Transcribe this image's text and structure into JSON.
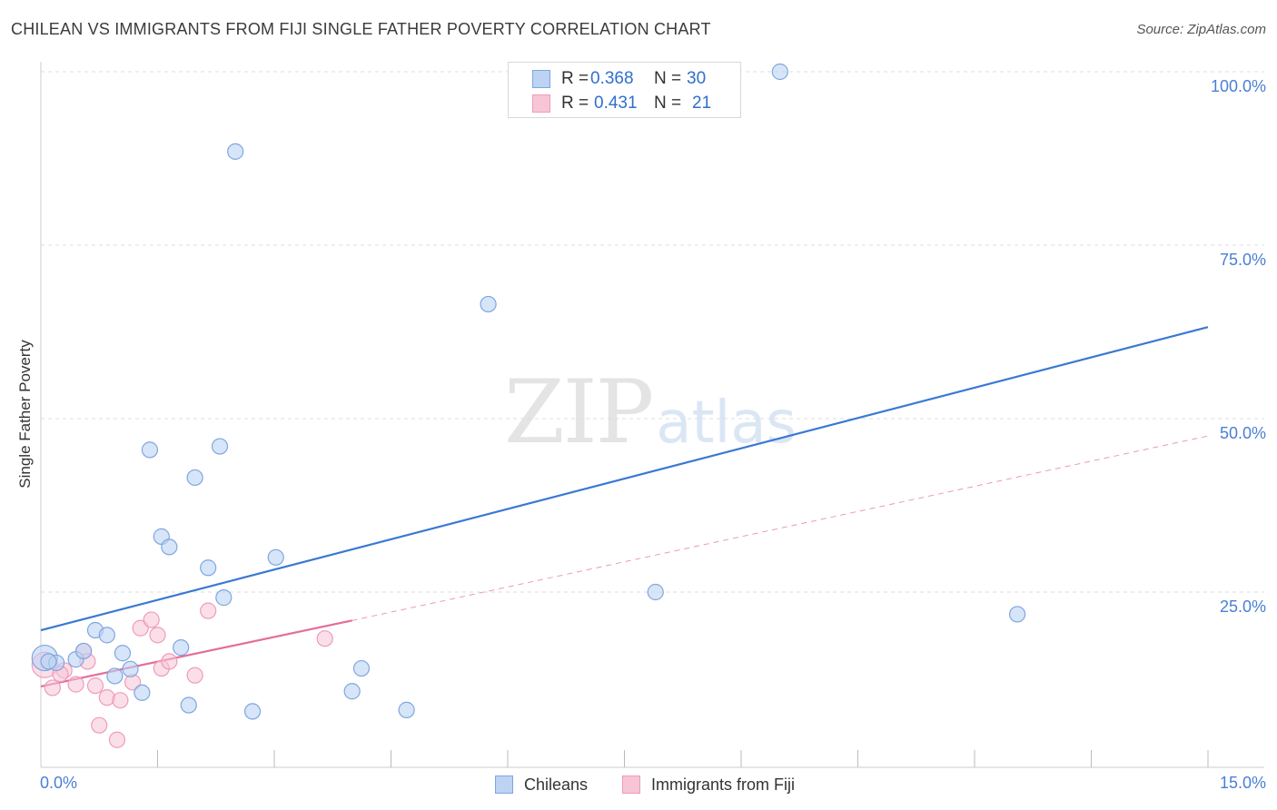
{
  "title": "CHILEAN VS IMMIGRANTS FROM FIJI SINGLE FATHER POVERTY CORRELATION CHART",
  "source": "Source: ZipAtlas.com",
  "watermark": {
    "zip": "ZIP",
    "atlas": "atlas"
  },
  "colors": {
    "blue": "#3a78d4",
    "blue_fill": "#bcd3f3",
    "blue_stroke": "#7fa6e0",
    "pink": "#e46d9b",
    "pink_fill": "#f7c5d6",
    "pink_stroke": "#ee9bbb",
    "grid": "#dddddd",
    "axis_text": "#4a7fd4"
  },
  "stats_legend": {
    "rows": [
      {
        "r_label": "R =",
        "r_value": "0.368",
        "n_label": "N =",
        "n_value": "30"
      },
      {
        "r_label": "R =",
        "r_value": "0.431",
        "n_label": "N =",
        "n_value": "21"
      }
    ]
  },
  "legend": {
    "chileans": "Chileans",
    "fiji": "Immigrants from Fiji"
  },
  "axes": {
    "ylabel": "Single Father Poverty",
    "x_min_label": "0.0%",
    "x_max_label": "15.0%",
    "y_tick_labels": [
      "25.0%",
      "50.0%",
      "75.0%",
      "100.0%"
    ]
  },
  "chart_data": {
    "type": "scatter",
    "title": "CHILEAN VS IMMIGRANTS FROM FIJI SINGLE FATHER POVERTY CORRELATION CHART",
    "xlabel": "",
    "ylabel": "Single Father Poverty",
    "xlim": [
      0,
      15
    ],
    "ylim": [
      0,
      100
    ],
    "y_ticks": [
      25,
      50,
      75,
      100
    ],
    "series": [
      {
        "name": "Chileans",
        "r": 0.368,
        "n": 30,
        "points": [
          [
            0.05,
            15.5
          ],
          [
            0.2,
            14.8
          ],
          [
            0.45,
            15.3
          ],
          [
            0.55,
            16.5
          ],
          [
            0.7,
            19.5
          ],
          [
            0.85,
            18.8
          ],
          [
            0.95,
            12.9
          ],
          [
            1.05,
            16.2
          ],
          [
            1.15,
            13.9
          ],
          [
            1.3,
            10.5
          ],
          [
            1.4,
            45.5
          ],
          [
            1.55,
            33.0
          ],
          [
            1.65,
            31.5
          ],
          [
            1.8,
            17.0
          ],
          [
            1.9,
            8.7
          ],
          [
            1.98,
            41.5
          ],
          [
            2.15,
            28.5
          ],
          [
            2.3,
            46.0
          ],
          [
            2.35,
            24.2
          ],
          [
            2.5,
            88.5
          ],
          [
            2.72,
            7.8
          ],
          [
            3.02,
            30.0
          ],
          [
            4.0,
            10.7
          ],
          [
            4.12,
            14.0
          ],
          [
            4.7,
            8.0
          ],
          [
            5.75,
            66.5
          ],
          [
            7.9,
            25.0
          ],
          [
            9.5,
            100.0
          ],
          [
            12.55,
            21.8
          ],
          [
            0.1,
            15.0
          ]
        ],
        "trend": {
          "x0": 0.0,
          "y0": 19.5,
          "x1": 15.0,
          "y1": 63.2
        }
      },
      {
        "name": "Immigrants from Fiji",
        "r": 0.431,
        "n": 21,
        "points": [
          [
            0.05,
            14.5
          ],
          [
            0.15,
            11.2
          ],
          [
            0.3,
            13.7
          ],
          [
            0.45,
            11.7
          ],
          [
            0.55,
            16.5
          ],
          [
            0.6,
            15.0
          ],
          [
            0.7,
            11.5
          ],
          [
            0.75,
            5.8
          ],
          [
            0.85,
            9.8
          ],
          [
            0.98,
            3.7
          ],
          [
            1.02,
            9.4
          ],
          [
            1.18,
            12.0
          ],
          [
            1.28,
            19.8
          ],
          [
            1.42,
            21.0
          ],
          [
            1.5,
            18.8
          ],
          [
            1.55,
            14.0
          ],
          [
            1.65,
            15.0
          ],
          [
            1.98,
            13.0
          ],
          [
            2.15,
            22.3
          ],
          [
            3.65,
            18.3
          ],
          [
            0.25,
            13.2
          ]
        ],
        "trend_solid": {
          "x0": 0.0,
          "y0": 11.4,
          "x1": 4.0,
          "y1": 20.9
        },
        "trend_dashed": {
          "x0": 4.0,
          "y0": 20.9,
          "x1": 15.0,
          "y1": 47.5
        }
      }
    ]
  }
}
